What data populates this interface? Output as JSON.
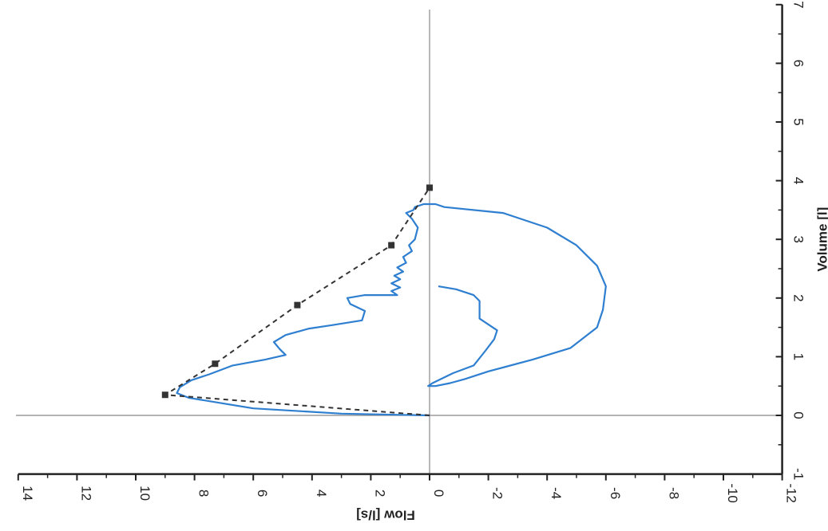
{
  "chart_data": {
    "type": "line",
    "rotation": "rotated 90 degrees clockwise (flow axis along bottom, volume axis along right)",
    "xlabel": "Flow [l/s]",
    "ylabel": "Volume [l]",
    "flow_ticks": [
      "14",
      "12",
      "10",
      "8",
      "6",
      "4",
      "2",
      "0",
      "-2",
      "-4",
      "-6",
      "-8",
      "-10",
      "-12"
    ],
    "volume_ticks": [
      "-1",
      "0",
      "1",
      "2",
      "3",
      "4",
      "5",
      "6",
      "7"
    ],
    "flow_range": [
      -12,
      14
    ],
    "volume_range": [
      -1,
      7
    ],
    "grid": false,
    "colors": {
      "loop": "#2f7fd1",
      "predicted": "#333333",
      "axes": "#222222",
      "zero_lines": "#888888"
    },
    "series": [
      {
        "style": "solid-blue",
        "points": [
          [
            0,
            0
          ],
          [
            3,
            0.03
          ],
          [
            6,
            0.12
          ],
          [
            8.2,
            0.3
          ],
          [
            8.6,
            0.38
          ],
          [
            8.5,
            0.48
          ],
          [
            8.1,
            0.6
          ],
          [
            7.5,
            0.7
          ],
          [
            6.7,
            0.85
          ],
          [
            5.6,
            0.95
          ],
          [
            4.9,
            1.03
          ],
          [
            5.1,
            1.13
          ],
          [
            5.3,
            1.25
          ],
          [
            4.9,
            1.37
          ],
          [
            4.1,
            1.48
          ],
          [
            3.3,
            1.54
          ],
          [
            2.3,
            1.62
          ],
          [
            2.2,
            1.78
          ],
          [
            2.7,
            1.9
          ],
          [
            2.8,
            2.0
          ],
          [
            2.2,
            2.05
          ],
          [
            1.5,
            2.05
          ],
          [
            1.1,
            2.05
          ],
          [
            1.3,
            2.12
          ],
          [
            1.0,
            2.18
          ],
          [
            1.3,
            2.25
          ],
          [
            1.0,
            2.32
          ],
          [
            1.2,
            2.38
          ],
          [
            0.9,
            2.45
          ],
          [
            1.1,
            2.52
          ],
          [
            0.8,
            2.6
          ],
          [
            0.9,
            2.7
          ],
          [
            0.6,
            2.8
          ],
          [
            0.7,
            2.9
          ],
          [
            0.5,
            3.0
          ],
          [
            0.4,
            3.2
          ],
          [
            0.6,
            3.35
          ],
          [
            0.8,
            3.45
          ],
          [
            0.55,
            3.5
          ],
          [
            0.5,
            3.55
          ],
          [
            0.2,
            3.6
          ],
          [
            -0.2,
            3.6
          ],
          [
            -0.5,
            3.55
          ],
          [
            -2.5,
            3.45
          ],
          [
            -4,
            3.2
          ],
          [
            -5,
            2.9
          ],
          [
            -5.7,
            2.55
          ],
          [
            -6.0,
            2.2
          ],
          [
            -5.9,
            1.8
          ],
          [
            -5.7,
            1.5
          ],
          [
            -4.8,
            1.15
          ],
          [
            -3.5,
            0.95
          ],
          [
            -2,
            0.75
          ],
          [
            -1.2,
            0.62
          ],
          [
            -0.7,
            0.55
          ],
          [
            -0.2,
            0.5
          ],
          [
            0.05,
            0.5
          ],
          [
            -0.1,
            0.55
          ],
          [
            -0.8,
            0.72
          ],
          [
            -1.5,
            0.85
          ],
          [
            -1.9,
            1.1
          ],
          [
            -2.2,
            1.3
          ],
          [
            -2.3,
            1.45
          ],
          [
            -2.0,
            1.55
          ],
          [
            -1.7,
            1.65
          ],
          [
            -1.7,
            1.8
          ],
          [
            -1.7,
            1.95
          ],
          [
            -1.5,
            2.05
          ],
          [
            -0.9,
            2.15
          ],
          [
            -0.3,
            2.2
          ]
        ]
      },
      {
        "style": "dashed-black",
        "points": [
          [
            0,
            0
          ],
          [
            9,
            0.35
          ],
          [
            7.3,
            0.88
          ],
          [
            4.5,
            1.88
          ],
          [
            1.3,
            2.9
          ],
          [
            0,
            3.88
          ]
        ]
      }
    ]
  }
}
